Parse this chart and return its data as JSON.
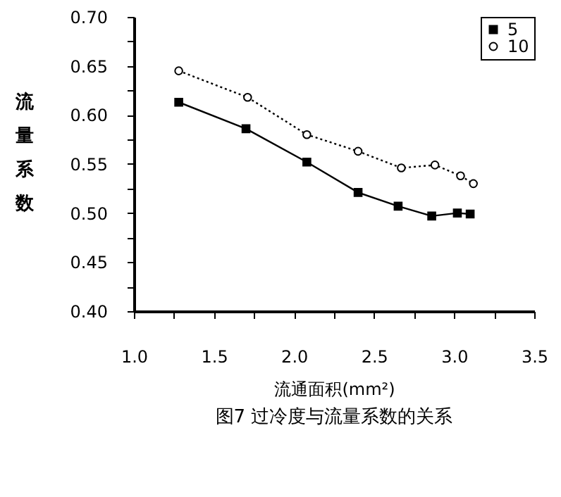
{
  "chart_data": {
    "type": "line",
    "title": "图7  过冷度与流量系数的关系",
    "xlabel": "流通面积(mm²)",
    "ylabel": "流量系数",
    "xlim": [
      1.0,
      3.5
    ],
    "xticks": [
      {
        "value": 1,
        "label": "1.0"
      },
      {
        "value": 1.25,
        "label": null
      },
      {
        "value": 1.5,
        "label": "1.5"
      },
      {
        "value": 1.75,
        "label": null
      },
      {
        "value": 2,
        "label": "2.0"
      },
      {
        "value": 2.25,
        "label": null
      },
      {
        "value": 2.5,
        "label": "2.5"
      },
      {
        "value": 2.75,
        "label": null
      },
      {
        "value": 3,
        "label": "3.0"
      },
      {
        "value": 3.25,
        "label": null
      },
      {
        "value": 3.5,
        "label": "3.5"
      }
    ],
    "ylim": [
      0.4,
      0.7
    ],
    "yticks": [
      {
        "value": 0.4,
        "label": "0.40"
      },
      {
        "value": 0.425,
        "label": null
      },
      {
        "value": 0.45,
        "label": "0.45"
      },
      {
        "value": 0.475,
        "label": null
      },
      {
        "value": 0.5,
        "label": "0.50"
      },
      {
        "value": 0.525,
        "label": null
      },
      {
        "value": 0.55,
        "label": "0.55"
      },
      {
        "value": 0.575,
        "label": null
      },
      {
        "value": 0.6,
        "label": "0.60"
      },
      {
        "value": 0.625,
        "label": null
      },
      {
        "value": 0.65,
        "label": "0.65"
      },
      {
        "value": 0.675,
        "label": null
      },
      {
        "value": 0.7,
        "label": "0.70"
      }
    ],
    "grid": false,
    "legend": "top right",
    "series": [
      {
        "name": "5",
        "color": "#000000",
        "marker": "square",
        "line_style": "solid",
        "x": [
          1.28,
          1.7,
          2.08,
          2.4,
          2.65,
          2.86,
          3.02,
          3.1
        ],
        "values": [
          0.613,
          0.586,
          0.552,
          0.521,
          0.507,
          0.497,
          0.5,
          0.499
        ]
      },
      {
        "name": "10",
        "color": "#000000",
        "marker": "circle",
        "line_style": "dotted",
        "x": [
          1.28,
          1.71,
          2.08,
          2.4,
          2.67,
          2.88,
          3.04,
          3.12
        ],
        "values": [
          0.645,
          0.618,
          0.58,
          0.563,
          0.546,
          0.549,
          0.538,
          0.53
        ]
      }
    ]
  }
}
